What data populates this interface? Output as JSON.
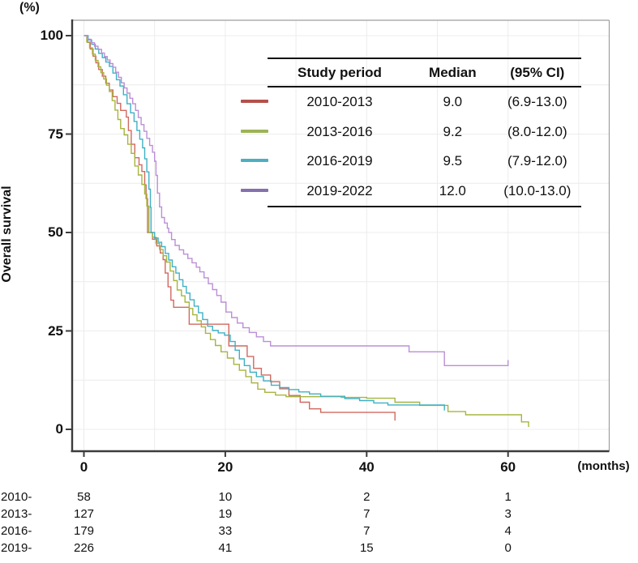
{
  "chart": {
    "percent_unit": "(%)",
    "months_unit": "(months)",
    "y_axis_label": "Overall survival"
  },
  "legend": {
    "headers": [
      "Study period",
      "Median",
      "(95% CI)"
    ],
    "rows": [
      {
        "period": "2010-2013",
        "median": "9.0",
        "ci": "(6.9-13.0)",
        "color": "#b5504b"
      },
      {
        "period": "2013-2016",
        "median": "9.2",
        "ci": "(8.0-12.0)",
        "color": "#9cb356"
      },
      {
        "period": "2016-2019",
        "median": "9.5",
        "ci": "(7.9-12.0)",
        "color": "#4fadc2"
      },
      {
        "period": "2019-2022",
        "median": "12.0",
        "ci": "(10.0-13.0)",
        "color": "#8571ad"
      }
    ]
  },
  "at_risk": {
    "rows": [
      {
        "label": "2010-",
        "values": [
          "58",
          "10",
          "2",
          "1"
        ]
      },
      {
        "label": "2013-",
        "values": [
          "127",
          "19",
          "7",
          "3"
        ]
      },
      {
        "label": "2016-",
        "values": [
          "179",
          "33",
          "7",
          "4"
        ]
      },
      {
        "label": "2019-",
        "values": [
          "226",
          "41",
          "15",
          "0"
        ]
      }
    ]
  },
  "chart_data": {
    "type": "line",
    "subtype": "kaplan-meier-step",
    "title": "Overall survival by study period",
    "xlabel": "months",
    "ylabel": "Overall survival (%)",
    "xlim": [
      0,
      74.5
    ],
    "ylim": [
      0,
      100
    ],
    "x_ticks": [
      0,
      20,
      40,
      60
    ],
    "y_ticks": [
      0,
      25,
      50,
      75,
      100
    ],
    "grid": {
      "x_interval": 10,
      "y_interval": 12.5,
      "color": "#ececec"
    },
    "legend_position": "top-right",
    "series": [
      {
        "name": "2010-2013",
        "median_months": 9.0,
        "ci_95": "(6.9-13.0)",
        "line_color": "#d0695f",
        "legend_color": "#b5504b",
        "points": [
          [
            0,
            100
          ],
          [
            0.5,
            98.3
          ],
          [
            0.9,
            96.6
          ],
          [
            1.3,
            94.8
          ],
          [
            1.7,
            93.1
          ],
          [
            2.1,
            91.4
          ],
          [
            2.6,
            89.7
          ],
          [
            3.1,
            87.9
          ],
          [
            3.6,
            86.2
          ],
          [
            4.1,
            84.5
          ],
          [
            4.7,
            82.8
          ],
          [
            5.2,
            81
          ],
          [
            6,
            79.3
          ],
          [
            6.3,
            75.9
          ],
          [
            6.7,
            72.4
          ],
          [
            7.2,
            69
          ],
          [
            7.8,
            67.2
          ],
          [
            8.2,
            65.5
          ],
          [
            8.6,
            62.1
          ],
          [
            8.8,
            58.6
          ],
          [
            9,
            50
          ],
          [
            9.7,
            48.3
          ],
          [
            10.3,
            46.6
          ],
          [
            10.8,
            44.8
          ],
          [
            11.2,
            43.1
          ],
          [
            11.5,
            39.7
          ],
          [
            11.9,
            36.2
          ],
          [
            12.3,
            32.8
          ],
          [
            12.7,
            31
          ],
          [
            14.9,
            26.7
          ],
          [
            20.5,
            21.2
          ],
          [
            23.1,
            18.5
          ],
          [
            24,
            15.5
          ],
          [
            25.1,
            13.8
          ],
          [
            26.4,
            12.1
          ],
          [
            27.7,
            10.3
          ],
          [
            29,
            8.6
          ],
          [
            30.6,
            6.9
          ],
          [
            31.9,
            5.2
          ],
          [
            33.5,
            4.3
          ],
          [
            44,
            4.3
          ],
          [
            44,
            2.2
          ]
        ]
      },
      {
        "name": "2013-2016",
        "median_months": 9.2,
        "ci_95": "(8.0-12.0)",
        "line_color": "#a6b53f",
        "legend_color": "#9cb356",
        "points": [
          [
            0,
            100
          ],
          [
            0.4,
            98.4
          ],
          [
            0.8,
            96.9
          ],
          [
            1.2,
            95.3
          ],
          [
            1.6,
            93.7
          ],
          [
            2,
            92.1
          ],
          [
            2.4,
            90.6
          ],
          [
            2.8,
            89
          ],
          [
            3.2,
            87.4
          ],
          [
            3.6,
            85.8
          ],
          [
            4,
            83.5
          ],
          [
            4.4,
            81.1
          ],
          [
            4.8,
            78.7
          ],
          [
            5.2,
            76.4
          ],
          [
            5.7,
            74.8
          ],
          [
            6.2,
            72.4
          ],
          [
            6.7,
            70.1
          ],
          [
            7.2,
            66.9
          ],
          [
            7.7,
            64.6
          ],
          [
            8.2,
            62.2
          ],
          [
            8.6,
            59.8
          ],
          [
            8.9,
            56.7
          ],
          [
            9.2,
            50
          ],
          [
            9.7,
            48.8
          ],
          [
            10.2,
            47.2
          ],
          [
            10.7,
            45.7
          ],
          [
            11.2,
            44.1
          ],
          [
            11.7,
            42.5
          ],
          [
            12.2,
            40.2
          ],
          [
            12.7,
            37.8
          ],
          [
            13.2,
            35.4
          ],
          [
            13.8,
            33.9
          ],
          [
            14.3,
            32.3
          ],
          [
            14.9,
            30.7
          ],
          [
            15.4,
            29.1
          ],
          [
            16,
            27.6
          ],
          [
            16.6,
            26
          ],
          [
            17.2,
            24.4
          ],
          [
            17.9,
            22.8
          ],
          [
            18.6,
            21.3
          ],
          [
            19.4,
            19.7
          ],
          [
            20.3,
            18.1
          ],
          [
            21.2,
            16.5
          ],
          [
            22,
            15
          ],
          [
            22.9,
            13.4
          ],
          [
            23.7,
            11.8
          ],
          [
            24.6,
            10.2
          ],
          [
            25.6,
            9.4
          ],
          [
            27.1,
            8.7
          ],
          [
            28.6,
            8.3
          ],
          [
            36.4,
            8.1
          ],
          [
            40,
            7.9
          ],
          [
            44,
            6.9
          ],
          [
            47.5,
            6.1
          ],
          [
            51.5,
            4.5
          ],
          [
            54,
            3.7
          ],
          [
            61.9,
            1.9
          ],
          [
            62.9,
            1.9
          ],
          [
            62.9,
            0.6
          ]
        ]
      },
      {
        "name": "2016-2019",
        "median_months": 9.5,
        "ci_95": "(7.9-12.0)",
        "line_color": "#3fb0c4",
        "legend_color": "#4fadc2",
        "points": [
          [
            0,
            100
          ],
          [
            0.6,
            98.9
          ],
          [
            1.1,
            97.8
          ],
          [
            1.6,
            96.6
          ],
          [
            2.1,
            95.5
          ],
          [
            2.6,
            94.4
          ],
          [
            3.1,
            93.3
          ],
          [
            3.6,
            92.2
          ],
          [
            4.1,
            90.5
          ],
          [
            4.6,
            88.8
          ],
          [
            5.1,
            87.2
          ],
          [
            5.6,
            85
          ],
          [
            6.1,
            82.7
          ],
          [
            6.6,
            80.4
          ],
          [
            7.1,
            78.2
          ],
          [
            7.5,
            75.9
          ],
          [
            7.9,
            73.7
          ],
          [
            8.3,
            71.5
          ],
          [
            8.6,
            68.7
          ],
          [
            8.9,
            65.4
          ],
          [
            9.2,
            61
          ],
          [
            9.4,
            56.4
          ],
          [
            9.5,
            50
          ],
          [
            10,
            48.6
          ],
          [
            10.5,
            47.5
          ],
          [
            11,
            46.4
          ],
          [
            11.5,
            44.7
          ],
          [
            12,
            43
          ],
          [
            12.5,
            41.3
          ],
          [
            13,
            39.7
          ],
          [
            13.5,
            38
          ],
          [
            14,
            36.3
          ],
          [
            14.5,
            34.6
          ],
          [
            15,
            32.9
          ],
          [
            15.6,
            31.3
          ],
          [
            16.2,
            29.6
          ],
          [
            16.8,
            27.9
          ],
          [
            17.5,
            26.2
          ],
          [
            18.2,
            25.1
          ],
          [
            19,
            24.5
          ],
          [
            19.9,
            23.9
          ],
          [
            20.7,
            22.3
          ],
          [
            21.4,
            20.1
          ],
          [
            22,
            17.9
          ],
          [
            22.7,
            16.2
          ],
          [
            23.5,
            14.5
          ],
          [
            24.4,
            13.4
          ],
          [
            25.4,
            12.3
          ],
          [
            26.5,
            11.2
          ],
          [
            27.7,
            10.6
          ],
          [
            29,
            10.1
          ],
          [
            30.4,
            9.5
          ],
          [
            31.9,
            9
          ],
          [
            33.5,
            8.4
          ],
          [
            36.9,
            7.8
          ],
          [
            39,
            7.3
          ],
          [
            41,
            6.7
          ],
          [
            43,
            6.2
          ],
          [
            51,
            6.2
          ],
          [
            51,
            4.8
          ]
        ]
      },
      {
        "name": "2019-2022",
        "median_months": 12.0,
        "ci_95": "(10.0-13.0)",
        "line_color": "#bb8fd6",
        "legend_color": "#8571ad",
        "points": [
          [
            0,
            100
          ],
          [
            0.5,
            99.1
          ],
          [
            1,
            98.2
          ],
          [
            1.5,
            97.3
          ],
          [
            2,
            96.5
          ],
          [
            2.5,
            95.6
          ],
          [
            2.9,
            94.7
          ],
          [
            3.3,
            93.8
          ],
          [
            3.7,
            92.9
          ],
          [
            4.1,
            92
          ],
          [
            4.5,
            90.7
          ],
          [
            4.9,
            89.4
          ],
          [
            5.3,
            88
          ],
          [
            5.7,
            86.7
          ],
          [
            6.1,
            85.4
          ],
          [
            6.5,
            84.1
          ],
          [
            6.9,
            82.7
          ],
          [
            7.3,
            81
          ],
          [
            7.7,
            79.2
          ],
          [
            8.1,
            77.4
          ],
          [
            8.5,
            75.7
          ],
          [
            8.9,
            73.9
          ],
          [
            9.3,
            72.1
          ],
          [
            9.7,
            70.4
          ],
          [
            10,
            68.1
          ],
          [
            10.2,
            64.5
          ],
          [
            10.4,
            60
          ],
          [
            10.7,
            56.5
          ],
          [
            11,
            53.8
          ],
          [
            11.4,
            52.4
          ],
          [
            11.8,
            51.1
          ],
          [
            12,
            50
          ],
          [
            12.4,
            48.2
          ],
          [
            12.9,
            46.7
          ],
          [
            13.5,
            45.6
          ],
          [
            14.1,
            44.5
          ],
          [
            14.7,
            43.4
          ],
          [
            15.3,
            42.3
          ],
          [
            15.9,
            41.2
          ],
          [
            16.4,
            40
          ],
          [
            17,
            38.5
          ],
          [
            17.6,
            37
          ],
          [
            18.2,
            35.5
          ],
          [
            18.8,
            34
          ],
          [
            19.4,
            32.3
          ],
          [
            20.1,
            29.8
          ],
          [
            20.9,
            28.4
          ],
          [
            21.7,
            27
          ],
          [
            22.5,
            25.8
          ],
          [
            23.4,
            24.6
          ],
          [
            24.4,
            23.5
          ],
          [
            25.4,
            22.3
          ],
          [
            26.4,
            21.2
          ],
          [
            45.9,
            21.2
          ],
          [
            46,
            19.7
          ],
          [
            50.9,
            19.7
          ],
          [
            51,
            16.2
          ],
          [
            60,
            16.2
          ],
          [
            60,
            17.6
          ]
        ]
      }
    ]
  }
}
